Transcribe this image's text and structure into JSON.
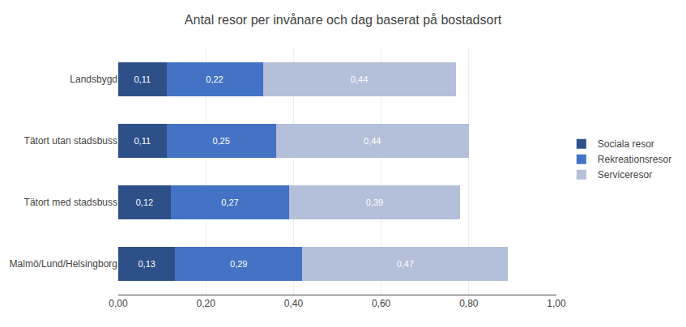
{
  "chart_data": {
    "type": "bar",
    "orientation": "horizontal",
    "stacked": true,
    "title": "Antal resor per invånare och dag baserat på bostadsort",
    "categories": [
      "Malmö/Lund/Helsingborg",
      "Tätort med stadsbuss",
      "Tätort utan stadsbuss",
      "Landsbygd"
    ],
    "series": [
      {
        "name": "Sociala resor",
        "color": "#2E5089",
        "values": [
          0.13,
          0.12,
          0.11,
          0.11
        ],
        "value_labels": [
          "0,13",
          "0,12",
          "0,11",
          "0,11"
        ]
      },
      {
        "name": "Rekreationsresor",
        "color": "#4472C4",
        "values": [
          0.29,
          0.27,
          0.25,
          0.22
        ],
        "value_labels": [
          "0,29",
          "0,27",
          "0,25",
          "0,22"
        ]
      },
      {
        "name": "Serviceresor",
        "color": "#B4BFDA",
        "values": [
          0.47,
          0.39,
          0.44,
          0.44
        ],
        "value_labels": [
          "0,47",
          "0,39",
          "0,44",
          "0,44"
        ]
      }
    ],
    "xlim": [
      0,
      1.0
    ],
    "xticks": [
      {
        "value": 0.0,
        "label": "0,00"
      },
      {
        "value": 0.2,
        "label": "0,20"
      },
      {
        "value": 0.4,
        "label": "0,40"
      },
      {
        "value": 0.6,
        "label": "0,60"
      },
      {
        "value": 0.8,
        "label": "0,80"
      },
      {
        "value": 1.0,
        "label": "1,00"
      }
    ],
    "grid": true,
    "legend": "right",
    "data_labels": true
  }
}
